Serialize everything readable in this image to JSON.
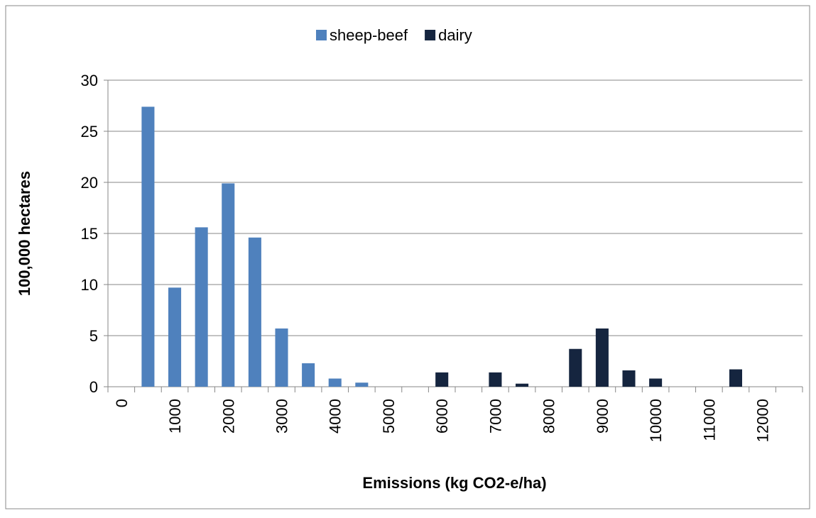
{
  "chart_data": {
    "type": "bar",
    "x_label": "Emissions (kg CO2-e/ha)",
    "y_label": "100,000 hectares",
    "categories": [
      "0",
      null,
      "1000",
      null,
      "2000",
      null,
      "3000",
      null,
      "4000",
      null,
      "5000",
      null,
      "6000",
      null,
      "7000",
      null,
      "8000",
      null,
      "9000",
      null,
      "10000",
      null,
      "11000",
      null,
      "12000",
      null
    ],
    "series": [
      {
        "name": "sheep-beef",
        "color": "#4f81bd",
        "values": [
          null,
          27.4,
          9.7,
          15.6,
          19.9,
          14.6,
          5.7,
          2.3,
          0.8,
          0.4,
          null,
          null,
          null,
          null,
          null,
          null,
          null,
          null,
          null,
          null,
          null,
          null,
          null,
          null,
          null,
          null
        ]
      },
      {
        "name": "dairy",
        "color": "#15253f",
        "values": [
          null,
          null,
          null,
          null,
          null,
          null,
          null,
          null,
          null,
          null,
          null,
          null,
          1.4,
          null,
          1.4,
          0.3,
          null,
          3.7,
          5.7,
          1.6,
          0.8,
          null,
          null,
          1.7,
          null,
          null
        ]
      }
    ],
    "ylim": [
      0,
      30
    ],
    "yticks": [
      0,
      5,
      10,
      15,
      20,
      25,
      30
    ],
    "grid": true,
    "legend": "top"
  }
}
